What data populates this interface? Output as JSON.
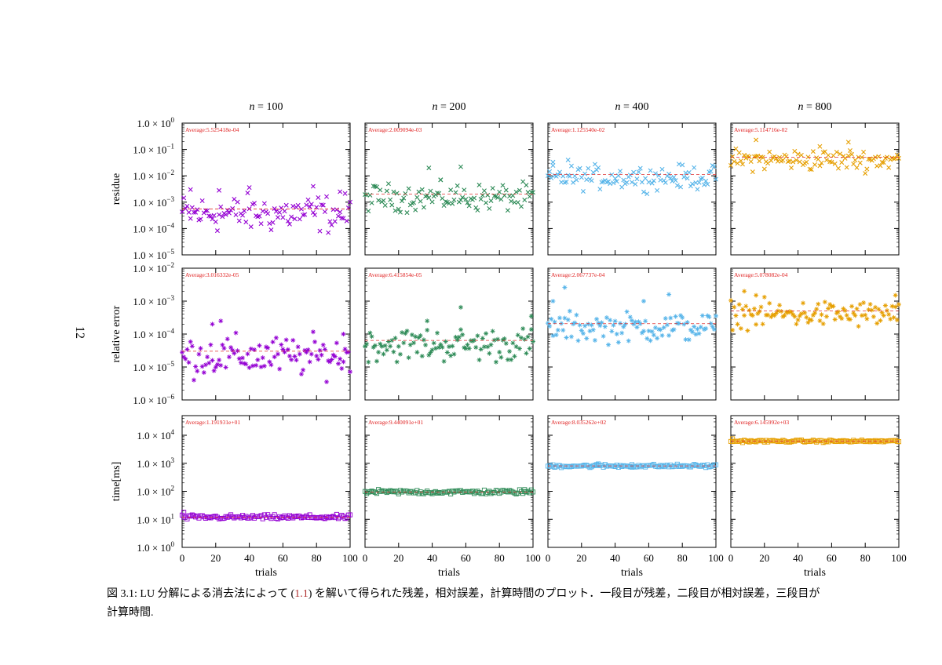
{
  "page_number": "12",
  "caption": {
    "prefix": "図 3.1: LU 分解による消去法によって (",
    "ref": "1.1",
    "suffix": ") を解いて得られた残差，相対誤差，計算時間のプロット．一段目が残差，二段目が相対誤差，三段目が計算時間."
  },
  "chart_data": {
    "type": "scatter",
    "columns": [
      "n = 100",
      "n = 200",
      "n = 400",
      "n = 800"
    ],
    "column_var": "n",
    "column_values": [
      "100",
      "200",
      "400",
      "800"
    ],
    "colors": [
      "#9400d3",
      "#2e8b57",
      "#56b4e9",
      "#e69f00"
    ],
    "average_line_color": "#e03030",
    "x": {
      "label": "trials",
      "range": [
        0,
        100
      ],
      "ticks": [
        "0",
        "20",
        "40",
        "60",
        "80",
        "100"
      ]
    },
    "rows": [
      {
        "key": "residue",
        "ylabel": "residue",
        "scale": "log",
        "ylim_exp": [
          -5,
          0
        ],
        "tick_exps": [
          0,
          -1,
          -2,
          -3,
          -4,
          -5
        ],
        "marker": "cross",
        "averages": [
          "Average:5.525418e-04",
          "Average:2.009094e-03",
          "Average:1.125540e-02",
          "Average:5.114716e-02"
        ],
        "average_values": [
          0.0005525418,
          0.002009094,
          0.0112554,
          0.05114716
        ],
        "spread": [
          0.35,
          0.25,
          0.22,
          0.2
        ],
        "spikes": [
          [
            [
              5,
              0.003
            ],
            [
              22,
              0.0028
            ],
            [
              40,
              0.0036
            ],
            [
              78,
              0.004
            ],
            [
              94,
              0.0025
            ]
          ],
          [
            [
              38,
              0.02
            ],
            [
              57,
              0.022
            ],
            [
              45,
              0.007
            ]
          ],
          [
            [
              3,
              0.033
            ],
            [
              12,
              0.04
            ]
          ],
          [
            [
              15,
              0.23
            ],
            [
              53,
              0.13
            ],
            [
              70,
              0.19
            ]
          ]
        ]
      },
      {
        "key": "relative_error",
        "ylabel": "relative error",
        "scale": "log",
        "ylim_exp": [
          -6,
          -2
        ],
        "tick_exps": [
          -2,
          -3,
          -4,
          -5,
          -6
        ],
        "marker": "star",
        "averages": [
          "Average:3.016332e-05",
          "Average:6.415854e-05",
          "Average:2.067737e-04",
          "Average:5.078082e-04"
        ],
        "average_values": [
          3.016332e-05,
          6.415854e-05,
          0.0002067737,
          0.0005078082
        ],
        "spread": [
          0.3,
          0.25,
          0.22,
          0.2
        ],
        "spikes": [
          [
            [
              18,
              0.0002
            ],
            [
              23,
              0.00025
            ],
            [
              96,
              0.0001
            ]
          ],
          [
            [
              57,
              0.00065
            ],
            [
              37,
              0.00025
            ],
            [
              99,
              0.00035
            ]
          ],
          [
            [
              3,
              0.001
            ],
            [
              10,
              0.0026
            ],
            [
              57,
              0.001
            ],
            [
              72,
              0.0016
            ]
          ],
          [
            [
              8,
              0.002
            ],
            [
              15,
              0.0015
            ],
            [
              98,
              0.0015
            ]
          ]
        ]
      },
      {
        "key": "time",
        "ylabel": "time[ms]",
        "scale": "log",
        "ylim_exp": [
          0,
          4.7
        ],
        "tick_exps": [
          0,
          1,
          2,
          3,
          4
        ],
        "marker": "square",
        "averages": [
          "Average:1.191931e+01",
          "Average:9.440091e+01",
          "Average:8.035262e+02",
          "Average:6.145992e+03"
        ],
        "average_values": [
          11.91931,
          94.40091,
          803.5262,
          6145.992
        ],
        "spread": [
          0.04,
          0.04,
          0.03,
          0.02
        ],
        "spikes": [
          [
            [
              1,
              18.0
            ]
          ],
          [
            [
              95,
              115.0
            ]
          ],
          [
            [
              30,
              950.0
            ],
            [
              50,
              900.0
            ]
          ],
          [
            [
              1,
              7500.0
            ]
          ]
        ]
      }
    ],
    "trials": 100
  }
}
